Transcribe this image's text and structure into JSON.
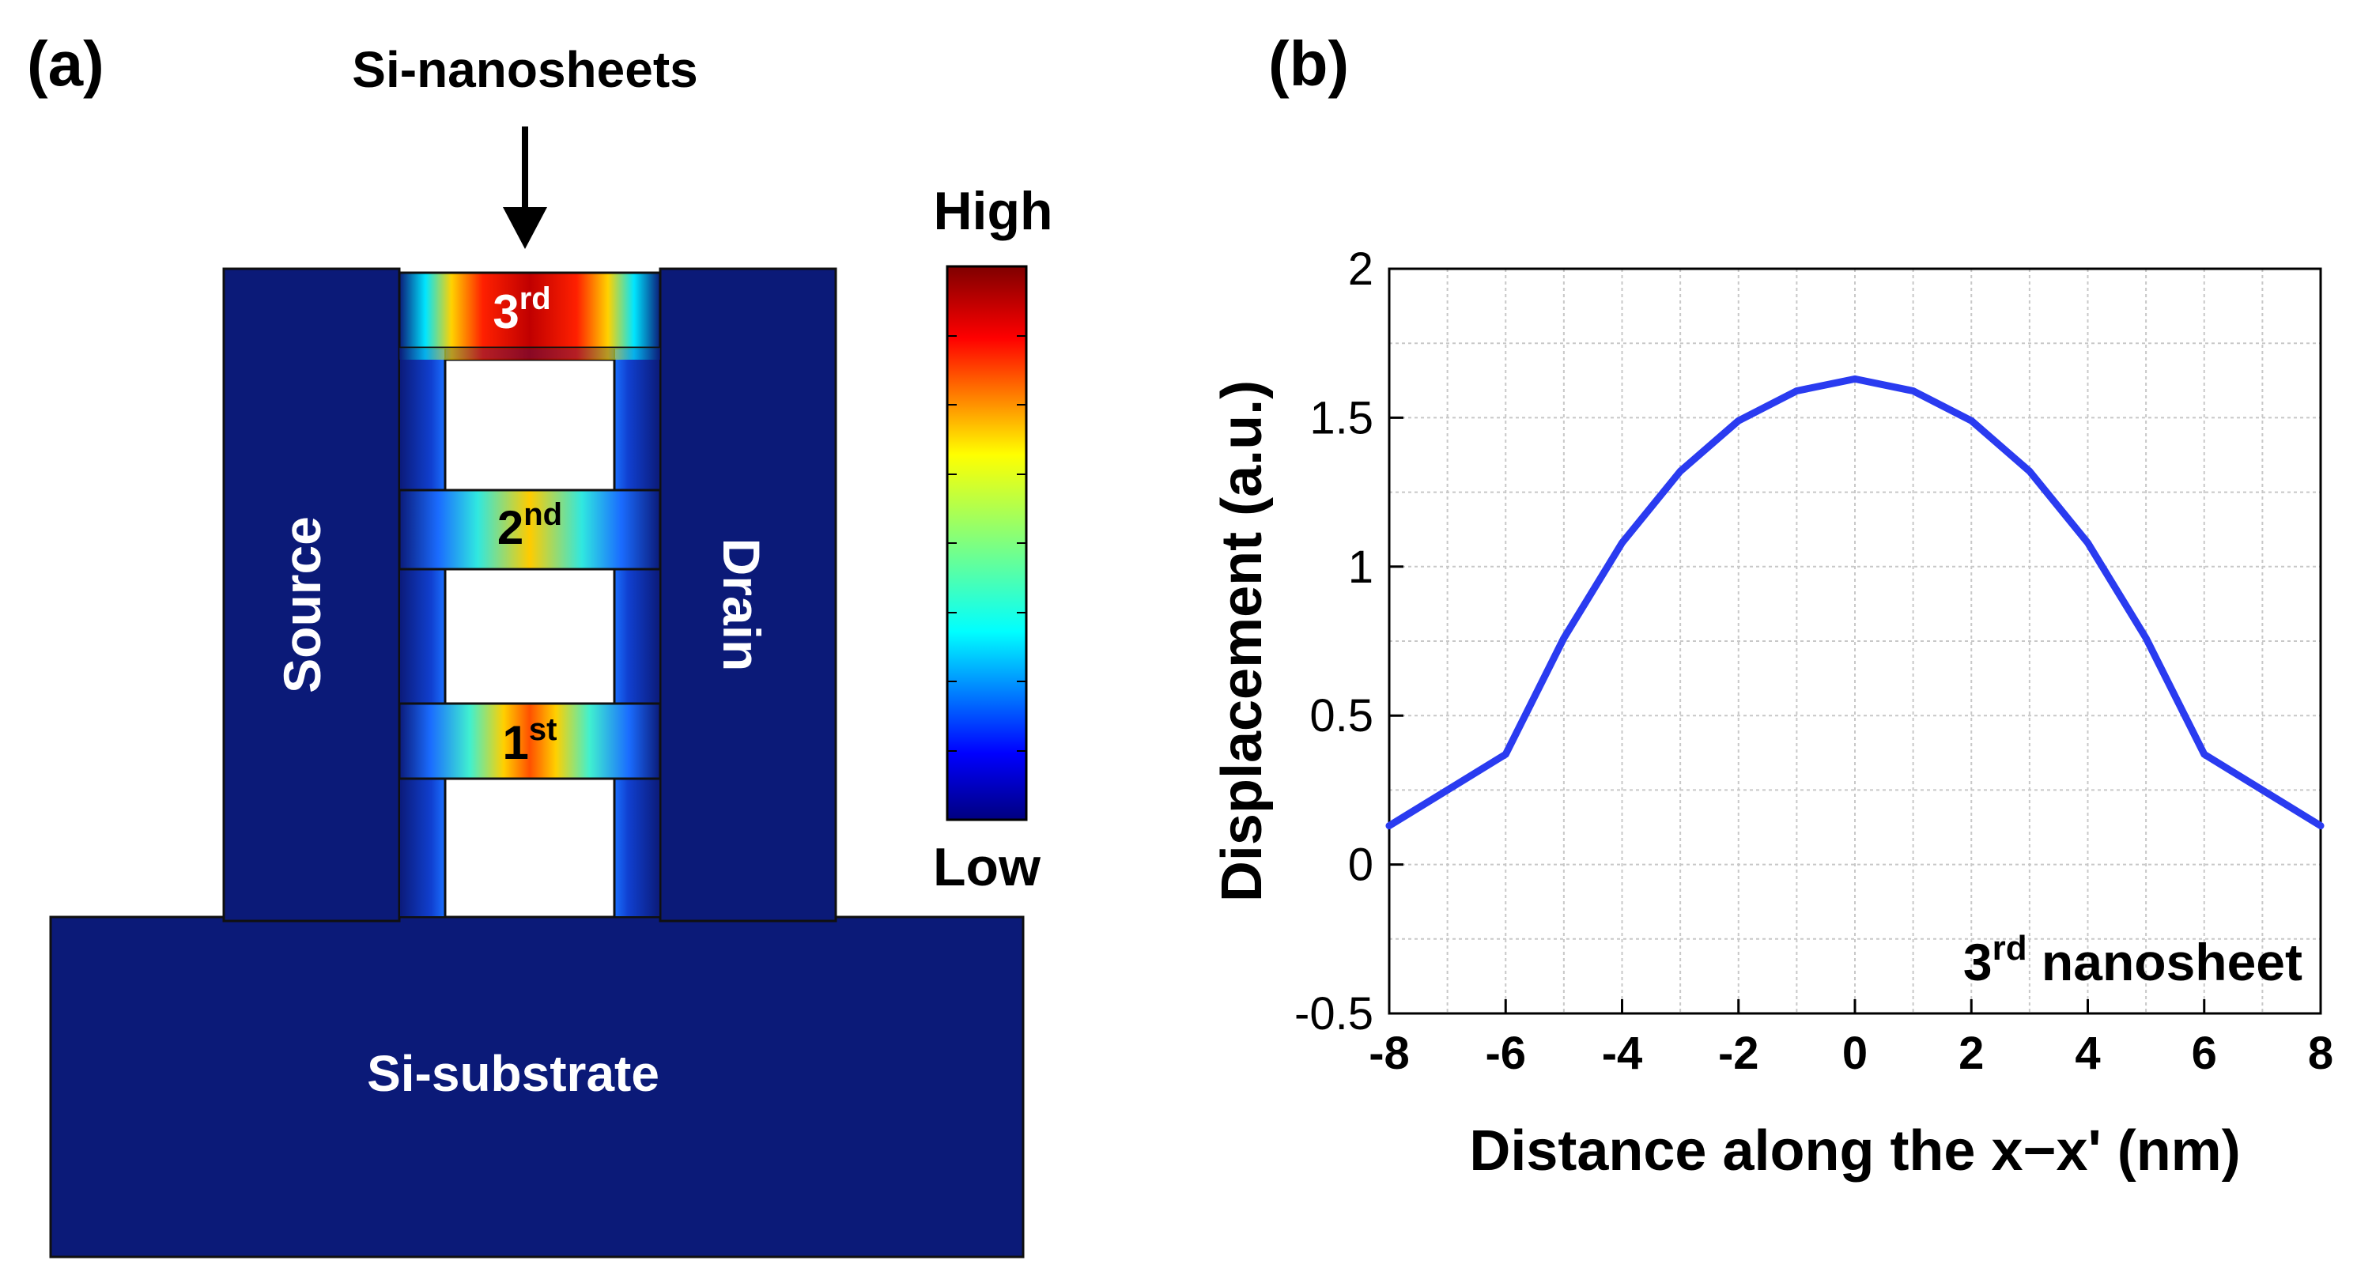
{
  "panel_a": {
    "label": "(a)",
    "annotation": "Si-nanosheets",
    "source": "Source",
    "drain": "Drain",
    "substrate": "Si-substrate",
    "sheets": [
      {
        "base": "1",
        "sup": "st"
      },
      {
        "base": "2",
        "sup": "nd"
      },
      {
        "base": "3",
        "sup": "rd"
      }
    ],
    "colorbar": {
      "high": "High",
      "low": "Low"
    },
    "colors": {
      "device": "#0b1a78",
      "outline": "#101010"
    }
  },
  "panel_b": {
    "label": "(b)",
    "annotation_base": "3",
    "annotation_sup": "rd",
    "annotation_rest": " nanosheet"
  },
  "chart_data": {
    "type": "line",
    "title": "",
    "xlabel": "Distance along the x−x' (nm)",
    "ylabel": "Displacement (a.u.)",
    "xlim": [
      -8,
      8
    ],
    "ylim": [
      -0.5,
      2
    ],
    "xticks": [
      -8,
      -6,
      -4,
      -2,
      0,
      2,
      4,
      6,
      8
    ],
    "yticks": [
      -0.5,
      0,
      0.5,
      1,
      1.5,
      2
    ],
    "xtick_labels": [
      "-8",
      "-6",
      "-4",
      "-2",
      "0",
      "2",
      "4",
      "6",
      "8"
    ],
    "ytick_labels": [
      "-0.5",
      "0",
      "0.5",
      "1",
      "1.5",
      "2"
    ],
    "grid": true,
    "series": [
      {
        "name": "3rd nanosheet",
        "color": "#2a3bf0",
        "x": [
          -8,
          -7,
          -6,
          -5,
          -4,
          -3,
          -2,
          -1,
          0,
          1,
          2,
          3,
          4,
          5,
          6,
          7,
          8
        ],
        "y": [
          0.13,
          0.25,
          0.37,
          0.76,
          1.08,
          1.32,
          1.49,
          1.59,
          1.63,
          1.59,
          1.49,
          1.32,
          1.08,
          0.76,
          0.37,
          0.25,
          0.13
        ]
      }
    ]
  }
}
